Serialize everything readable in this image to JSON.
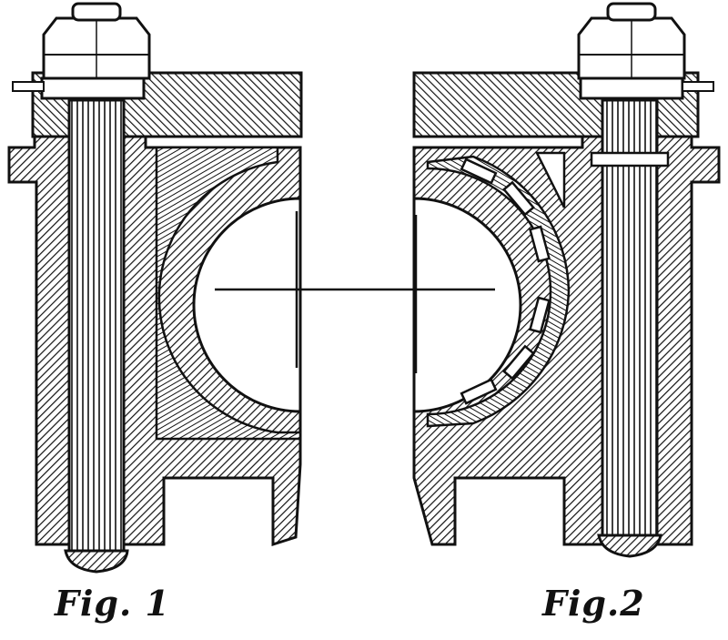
{
  "figures": [
    {
      "caption": "Fig. 1"
    },
    {
      "caption": "Fig.2"
    }
  ],
  "colors": {
    "ink": "#111111",
    "paper": "#ffffff"
  }
}
